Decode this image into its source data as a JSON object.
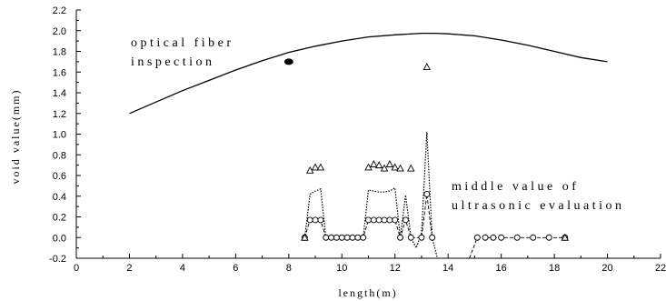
{
  "chart_data": {
    "type": "line",
    "title": "",
    "xlabel": "length(m)",
    "ylabel": "void value(mm)",
    "xlim": [
      0,
      22
    ],
    "ylim": [
      -0.2,
      2.2
    ],
    "x_ticks": [
      0,
      2,
      4,
      6,
      8,
      10,
      12,
      14,
      16,
      18,
      20,
      22
    ],
    "y_ticks": [
      -0.2,
      0.0,
      0.2,
      0.4,
      0.6,
      0.8,
      1.0,
      1.2,
      1.4,
      1.6,
      1.8,
      2.0,
      2.2
    ],
    "grid": false,
    "annotations": [
      {
        "lines": [
          "optical fiber",
          "inspection"
        ]
      },
      {
        "lines": [
          "middle value of",
          "ultrasonic evaluation"
        ]
      }
    ],
    "series": [
      {
        "style": "solid-curve",
        "x": [
          2,
          3,
          4,
          5,
          6,
          7,
          8,
          9,
          10,
          11,
          12,
          13,
          13.5,
          14,
          15,
          16,
          17,
          18,
          19,
          20
        ],
        "y": [
          1.2,
          1.31,
          1.42,
          1.52,
          1.62,
          1.71,
          1.79,
          1.85,
          1.9,
          1.94,
          1.96,
          1.975,
          1.975,
          1.97,
          1.95,
          1.91,
          1.86,
          1.8,
          1.74,
          1.7
        ]
      },
      {
        "style": "dotted-line",
        "x": [
          8.6,
          8.8,
          9.0,
          9.2,
          9.4,
          9.6,
          10.8,
          11.0,
          11.2,
          11.4,
          11.6,
          11.8,
          12.0,
          12.2,
          12.4,
          12.6,
          12.8,
          13.0,
          13.2,
          13.4,
          13.6
        ],
        "y": [
          0.0,
          0.42,
          0.45,
          0.47,
          0.0,
          0.0,
          0.0,
          0.46,
          0.45,
          0.44,
          0.44,
          0.45,
          0.48,
          0.0,
          0.41,
          0.0,
          -0.1,
          0.05,
          1.02,
          0.0,
          -0.2
        ]
      },
      {
        "style": "dashed-circles",
        "x": [
          8.6,
          8.8,
          9.0,
          9.2,
          9.4,
          9.6,
          9.8,
          10.0,
          10.2,
          10.4,
          10.6,
          10.8,
          11.0,
          11.2,
          11.4,
          11.6,
          11.8,
          12.0,
          12.2,
          12.4,
          12.6,
          13.0,
          13.2,
          13.4
        ],
        "y": [
          0.0,
          0.17,
          0.17,
          0.17,
          0.0,
          0.0,
          0.0,
          0.0,
          0.0,
          0.0,
          0.0,
          0.0,
          0.17,
          0.17,
          0.17,
          0.17,
          0.17,
          0.17,
          0.0,
          0.17,
          0.0,
          0.0,
          0.42,
          0.0
        ]
      },
      {
        "style": "dashed-circles",
        "x": [
          14.8,
          15.1,
          15.4,
          15.7,
          16.0,
          16.6,
          17.2,
          17.8,
          18.4
        ],
        "y": [
          -0.2,
          0.0,
          0.0,
          0.0,
          0.0,
          0.0,
          0.0,
          0.0,
          0.0
        ]
      },
      {
        "style": "triangles",
        "x": [
          8.8,
          9.0,
          9.2,
          11.0,
          11.2,
          11.4,
          11.6,
          11.8,
          12.0,
          12.2,
          12.6,
          13.2,
          8.6,
          18.4
        ],
        "y": [
          0.65,
          0.68,
          0.68,
          0.68,
          0.71,
          0.7,
          0.67,
          0.71,
          0.68,
          0.67,
          0.67,
          1.65,
          0.0,
          0.0
        ]
      },
      {
        "style": "filled-ellipse",
        "x": [
          8.0
        ],
        "y": [
          1.7
        ]
      }
    ]
  }
}
